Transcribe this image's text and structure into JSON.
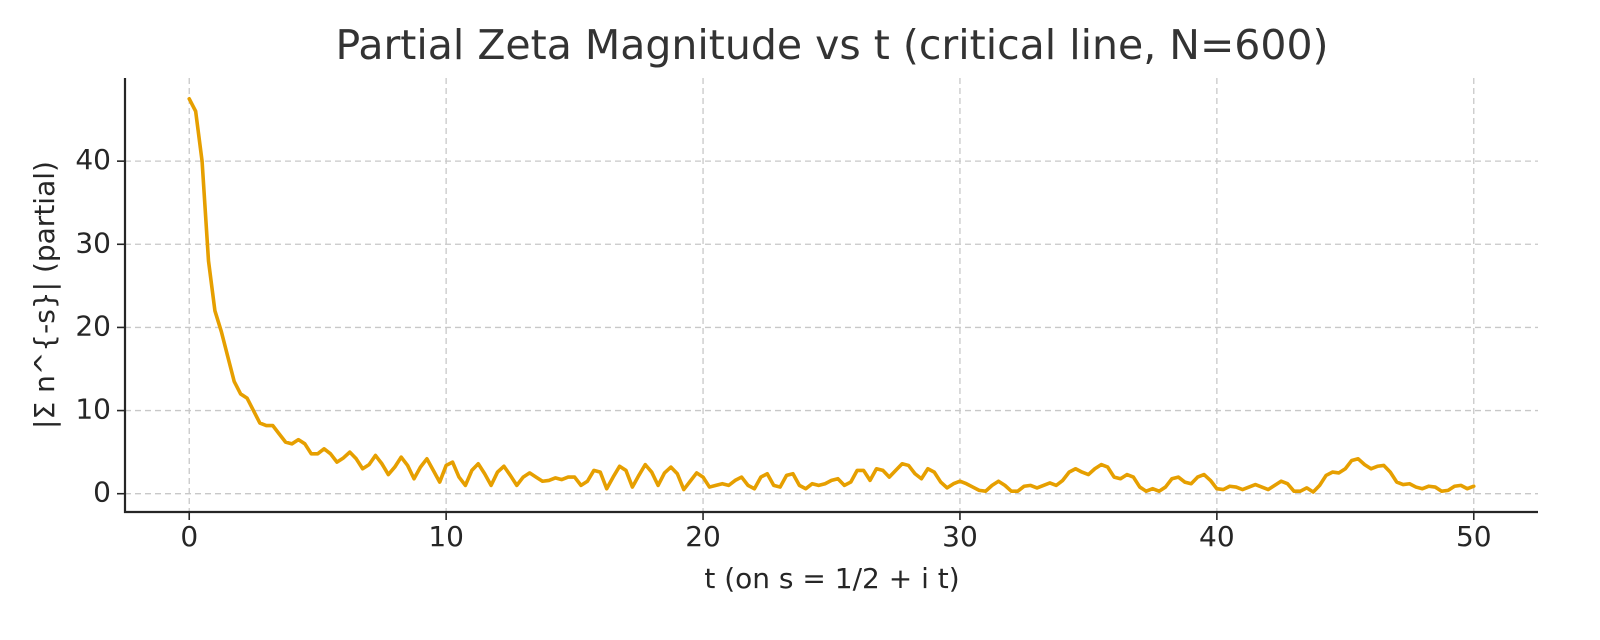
{
  "chart_data": {
    "type": "line",
    "title": "Partial Zeta Magnitude vs t  (critical line, N=600)",
    "xlabel": "t  (on s = 1/2 + i t)",
    "ylabel": "|Σ n^{-s}|  (partial)",
    "color": "#e69f00",
    "grid": true,
    "xlim": [
      -2.5,
      52.5
    ],
    "ylim": [
      -2.2,
      50
    ],
    "xticks": [
      0,
      10,
      20,
      30,
      40,
      50
    ],
    "yticks": [
      0,
      10,
      20,
      30,
      40
    ],
    "x": [
      0,
      0.25,
      0.5,
      0.75,
      1,
      1.25,
      1.5,
      1.75,
      2,
      2.25,
      2.5,
      2.75,
      3,
      3.25,
      3.5,
      3.75,
      4,
      4.25,
      4.5,
      4.75,
      5,
      5.25,
      5.5,
      5.75,
      6,
      6.25,
      6.5,
      6.75,
      7,
      7.25,
      7.5,
      7.75,
      8,
      8.25,
      8.5,
      8.75,
      9,
      9.25,
      9.5,
      9.75,
      10,
      10.25,
      10.5,
      10.75,
      11,
      11.25,
      11.5,
      11.75,
      12,
      12.25,
      12.5,
      12.75,
      13,
      13.25,
      13.5,
      13.75,
      14,
      14.25,
      14.5,
      14.75,
      15,
      15.25,
      15.5,
      15.75,
      16,
      16.25,
      16.5,
      16.75,
      17,
      17.25,
      17.5,
      17.75,
      18,
      18.25,
      18.5,
      18.75,
      19,
      19.25,
      19.5,
      19.75,
      20,
      20.25,
      20.5,
      20.75,
      21,
      21.25,
      21.5,
      21.75,
      22,
      22.25,
      22.5,
      22.75,
      23,
      23.25,
      23.5,
      23.75,
      24,
      24.25,
      24.5,
      24.75,
      25,
      25.25,
      25.5,
      25.75,
      26,
      26.25,
      26.5,
      26.75,
      27,
      27.25,
      27.5,
      27.75,
      28,
      28.25,
      28.5,
      28.75,
      29,
      29.25,
      29.5,
      29.75,
      30,
      30.25,
      30.5,
      30.75,
      31,
      31.25,
      31.5,
      31.75,
      32,
      32.25,
      32.5,
      32.75,
      33,
      33.25,
      33.5,
      33.75,
      34,
      34.25,
      34.5,
      34.75,
      35,
      35.25,
      35.5,
      35.75,
      36,
      36.25,
      36.5,
      36.75,
      37,
      37.25,
      37.5,
      37.75,
      38,
      38.25,
      38.5,
      38.75,
      39,
      39.25,
      39.5,
      39.75,
      40,
      40.25,
      40.5,
      40.75,
      41,
      41.25,
      41.5,
      41.75,
      42,
      42.25,
      42.5,
      42.75,
      43,
      43.25,
      43.5,
      43.75,
      44,
      44.25,
      44.5,
      44.75,
      45,
      45.25,
      45.5,
      45.75,
      46,
      46.25,
      46.5,
      46.75,
      47,
      47.25,
      47.5,
      47.75,
      48,
      48.25,
      48.5,
      48.75,
      49,
      49.25,
      49.5,
      49.75,
      50
    ],
    "values": [
      47.5,
      46,
      40,
      28,
      22,
      19.5,
      16.5,
      13.5,
      12,
      11.5,
      10,
      8.5,
      8.2,
      8.2,
      7.2,
      6.2,
      6.0,
      6.5,
      6.0,
      4.8,
      4.8,
      5.4,
      4.8,
      3.8,
      4.3,
      5.0,
      4.2,
      3.0,
      3.5,
      4.6,
      3.6,
      2.3,
      3.2,
      4.4,
      3.4,
      1.8,
      3.2,
      4.2,
      2.8,
      1.4,
      3.4,
      3.8,
      2.0,
      1.0,
      2.8,
      3.6,
      2.4,
      1.0,
      2.6,
      3.3,
      2.2,
      1.0,
      2.0,
      2.5,
      2.0,
      1.5,
      1.6,
      1.9,
      1.7,
      2.0,
      2.0,
      1.0,
      1.5,
      2.8,
      2.6,
      0.6,
      2.0,
      3.3,
      2.8,
      0.8,
      2.2,
      3.5,
      2.6,
      1.0,
      2.5,
      3.2,
      2.4,
      0.5,
      1.5,
      2.5,
      2.0,
      0.8,
      1.0,
      1.2,
      1.0,
      1.6,
      2.0,
      1.0,
      0.6,
      2.0,
      2.4,
      1.0,
      0.8,
      2.2,
      2.4,
      1.0,
      0.6,
      1.2,
      1.0,
      1.2,
      1.6,
      1.8,
      1.0,
      1.4,
      2.8,
      2.8,
      1.6,
      3.0,
      2.8,
      2.0,
      2.8,
      3.6,
      3.4,
      2.4,
      1.8,
      3.0,
      2.6,
      1.4,
      0.7,
      1.2,
      1.5,
      1.2,
      0.8,
      0.4,
      0.3,
      1.0,
      1.5,
      1.0,
      0.3,
      0.3,
      0.9,
      1.0,
      0.7,
      1.0,
      1.3,
      1.0,
      1.6,
      2.6,
      3.0,
      2.6,
      2.3,
      3.0,
      3.5,
      3.2,
      2.0,
      1.8,
      2.3,
      2.0,
      0.8,
      0.3,
      0.6,
      0.3,
      0.8,
      1.8,
      2.0,
      1.4,
      1.2,
      2.0,
      2.3,
      1.6,
      0.6,
      0.5,
      0.9,
      0.8,
      0.5,
      0.8,
      1.1,
      0.8,
      0.5,
      1.0,
      1.5,
      1.2,
      0.3,
      0.3,
      0.7,
      0.2,
      1.0,
      2.2,
      2.6,
      2.5,
      3.0,
      4.0,
      4.2,
      3.5,
      3.0,
      3.3,
      3.4,
      2.6,
      1.4,
      1.1,
      1.2,
      0.8,
      0.6,
      0.9,
      0.8,
      0.3,
      0.4,
      0.9,
      1.0,
      0.6,
      0.9
    ]
  }
}
